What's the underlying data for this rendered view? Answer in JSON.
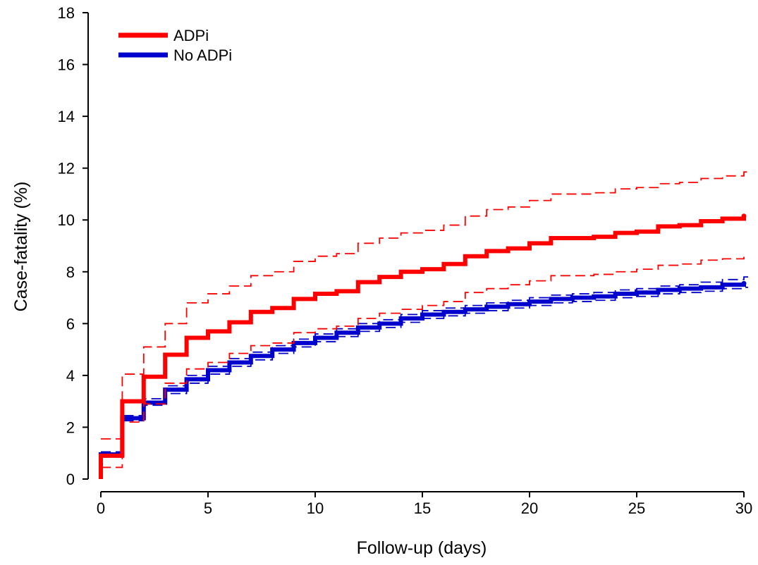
{
  "colors": {
    "adpi": "#ff0000",
    "no_adpi": "#0000cc",
    "axis": "#000000"
  },
  "chart_data": {
    "type": "line",
    "step": true,
    "xlabel": "Follow-up (days)",
    "ylabel": "Case-fatality (%)",
    "xlim": [
      0,
      30
    ],
    "ylim": [
      0,
      18
    ],
    "xticks": [
      0,
      5,
      10,
      15,
      20,
      25,
      30
    ],
    "yticks": [
      0,
      2,
      4,
      6,
      8,
      10,
      12,
      14,
      16,
      18
    ],
    "grid": false,
    "legend_position": "top-left",
    "series": [
      {
        "name": "ADPi",
        "color": "#ff0000",
        "x": [
          0,
          1,
          2,
          3,
          4,
          5,
          6,
          7,
          8,
          9,
          10,
          11,
          12,
          13,
          14,
          15,
          16,
          17,
          18,
          19,
          20,
          21,
          22,
          23,
          24,
          25,
          26,
          27,
          28,
          29,
          30
        ],
        "y": [
          0.9,
          3.0,
          3.95,
          4.8,
          5.45,
          5.7,
          6.05,
          6.45,
          6.6,
          6.95,
          7.15,
          7.25,
          7.6,
          7.8,
          8.0,
          8.1,
          8.3,
          8.6,
          8.8,
          8.9,
          9.1,
          9.3,
          9.3,
          9.35,
          9.5,
          9.55,
          9.75,
          9.8,
          9.95,
          10.05,
          10.15
        ],
        "ci_upper": [
          1.55,
          4.05,
          5.1,
          6.0,
          6.8,
          7.15,
          7.45,
          7.85,
          8.0,
          8.4,
          8.6,
          8.7,
          9.1,
          9.3,
          9.5,
          9.6,
          9.8,
          10.15,
          10.4,
          10.5,
          10.75,
          11.0,
          11.0,
          11.05,
          11.2,
          11.25,
          11.4,
          11.45,
          11.6,
          11.7,
          11.85
        ],
        "ci_lower": [
          0.45,
          2.2,
          2.9,
          3.7,
          4.25,
          4.5,
          4.85,
          5.15,
          5.25,
          5.65,
          5.8,
          5.9,
          6.2,
          6.4,
          6.55,
          6.7,
          6.85,
          7.2,
          7.35,
          7.5,
          7.65,
          7.85,
          7.85,
          7.9,
          8.0,
          8.1,
          8.25,
          8.3,
          8.45,
          8.5,
          8.6
        ]
      },
      {
        "name": "No ADPi",
        "color": "#0000cc",
        "x": [
          0,
          1,
          2,
          3,
          4,
          5,
          6,
          7,
          8,
          9,
          10,
          11,
          12,
          13,
          14,
          15,
          16,
          17,
          18,
          19,
          20,
          21,
          22,
          23,
          24,
          25,
          26,
          27,
          28,
          29,
          30
        ],
        "y": [
          0.95,
          2.35,
          2.95,
          3.45,
          3.85,
          4.2,
          4.5,
          4.75,
          5.0,
          5.25,
          5.45,
          5.65,
          5.85,
          6.0,
          6.2,
          6.35,
          6.45,
          6.55,
          6.65,
          6.75,
          6.85,
          6.95,
          7.0,
          7.05,
          7.15,
          7.2,
          7.3,
          7.35,
          7.4,
          7.5,
          7.55
        ],
        "ci_upper": [
          1.05,
          2.45,
          3.1,
          3.6,
          4.0,
          4.35,
          4.65,
          4.9,
          5.15,
          5.4,
          5.6,
          5.8,
          6.0,
          6.15,
          6.35,
          6.5,
          6.6,
          6.7,
          6.8,
          6.9,
          7.0,
          7.1,
          7.15,
          7.2,
          7.3,
          7.35,
          7.45,
          7.5,
          7.6,
          7.7,
          7.8
        ],
        "ci_lower": [
          0.85,
          2.25,
          2.85,
          3.3,
          3.7,
          4.05,
          4.35,
          4.6,
          4.85,
          5.1,
          5.3,
          5.5,
          5.7,
          5.85,
          6.05,
          6.2,
          6.3,
          6.4,
          6.5,
          6.6,
          6.7,
          6.8,
          6.85,
          6.9,
          7.0,
          7.05,
          7.15,
          7.2,
          7.25,
          7.35,
          7.4
        ]
      }
    ]
  }
}
